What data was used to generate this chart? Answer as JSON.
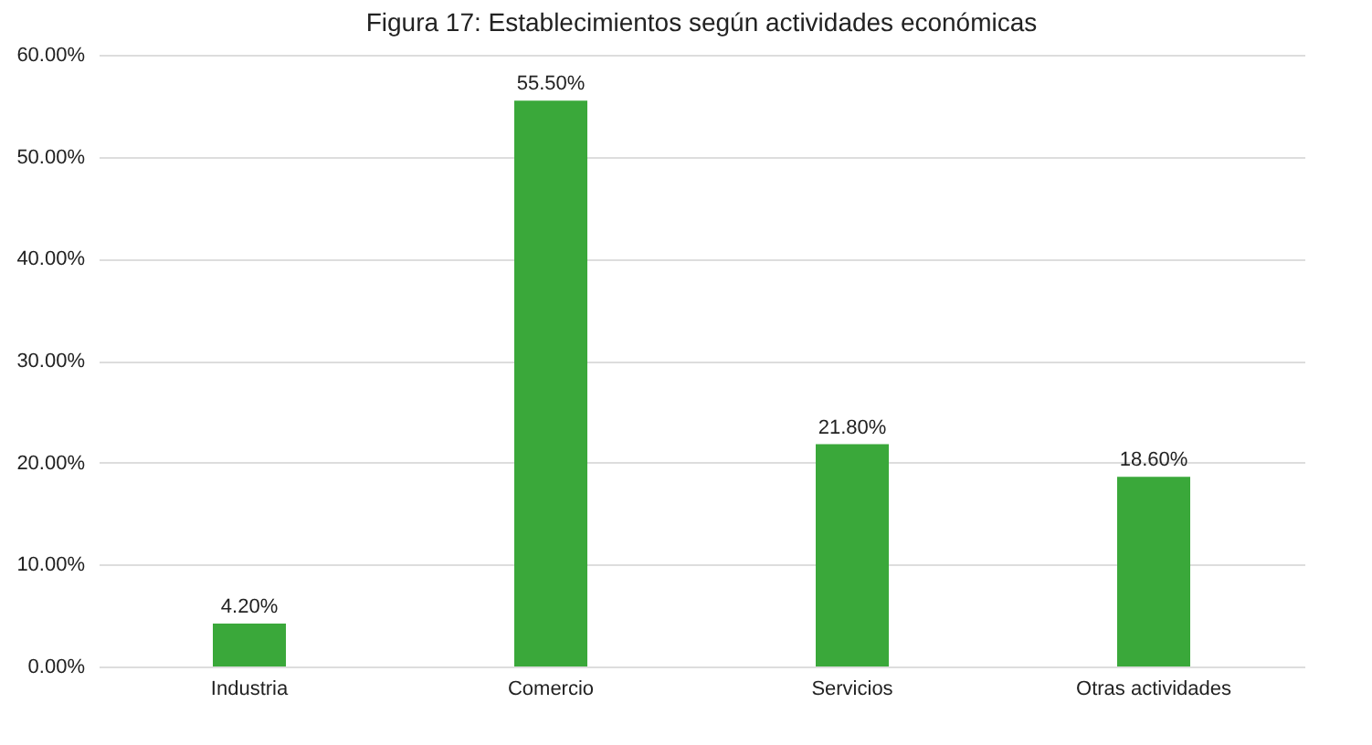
{
  "chart_data": {
    "type": "bar",
    "title": "Figura 17: Establecimientos según actividades económicas",
    "categories": [
      "Industria",
      "Comercio",
      "Servicios",
      "Otras actividades"
    ],
    "values": [
      4.2,
      55.5,
      21.8,
      18.6
    ],
    "value_labels": [
      "4.20%",
      "55.50%",
      "21.80%",
      "18.60%"
    ],
    "color": "#3aa83a",
    "ylim": [
      0,
      60
    ],
    "yticks": [
      {
        "value": 0,
        "label": "0.00%"
      },
      {
        "value": 10,
        "label": "10.00%"
      },
      {
        "value": 20,
        "label": "20.00%"
      },
      {
        "value": 30,
        "label": "30.00%"
      },
      {
        "value": 40,
        "label": "40.00%"
      },
      {
        "value": 50,
        "label": "50.00%"
      },
      {
        "value": 60,
        "label": "60.00%"
      }
    ],
    "grid": "y"
  }
}
